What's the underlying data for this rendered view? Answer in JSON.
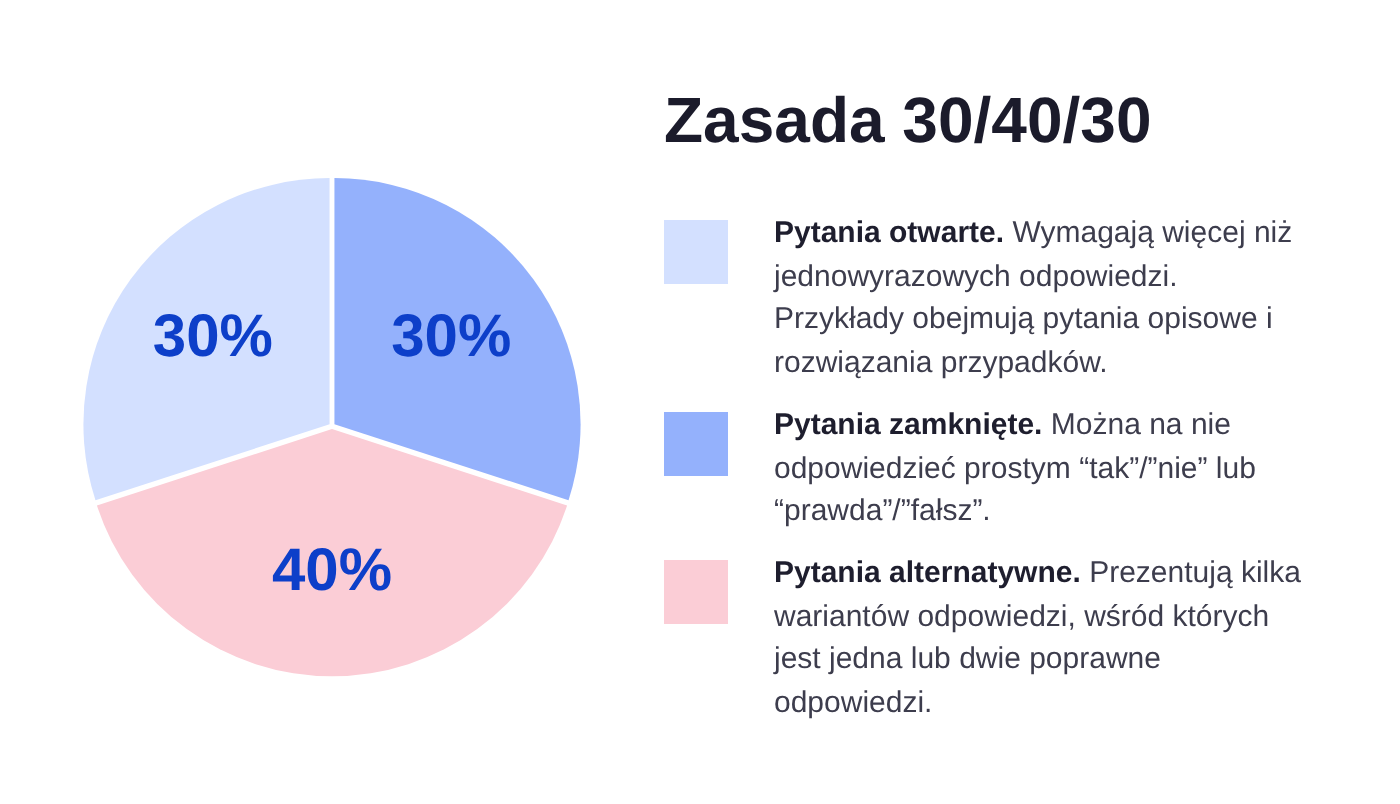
{
  "chart_data": {
    "type": "pie",
    "title": "Zasada 30/40/30",
    "categories": [
      "Pytania otwarte.",
      "Pytania zamknięte.",
      "Pytania alternatywne."
    ],
    "values": [
      30,
      30,
      40
    ],
    "colors": [
      "#d3e0ff",
      "#94b1fc",
      "#fbcdd6"
    ],
    "value_labels": [
      "30%",
      "30%",
      "40%"
    ],
    "legend": "right",
    "annotations": [
      "Wymagają więcej niż jednowyrazowych odpowiedzi. Przykłady obejmują pytania opisowe i rozwiązania przypadków.",
      "Można na nie odpowiedzieć prostym “tak”/”nie” lub “prawda”/”fałsz”.",
      "Prezentują kilka wariantów odpowiedzi, wśród których jest jedna lub dwie poprawne odpowiedzi."
    ]
  }
}
